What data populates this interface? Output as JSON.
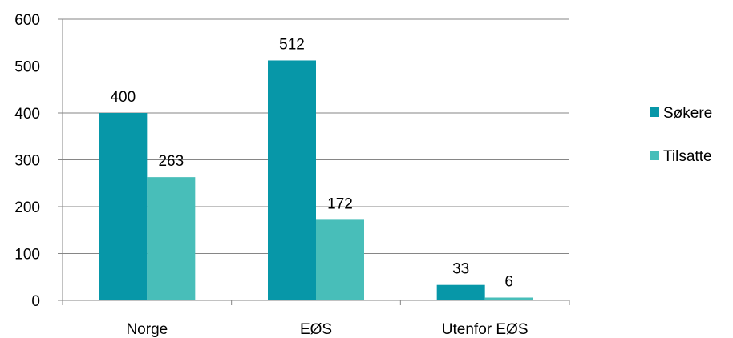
{
  "chart_data": {
    "type": "bar",
    "categories": [
      "Norge",
      "EØS",
      "Utenfor EØS"
    ],
    "series": [
      {
        "name": "Søkere",
        "values": [
          400,
          512,
          33
        ],
        "color": "#0797a8"
      },
      {
        "name": "Tilsatte",
        "values": [
          263,
          172,
          6
        ],
        "color": "#48beb9"
      }
    ],
    "ylim": [
      0,
      600
    ],
    "yticks": [
      0,
      100,
      200,
      300,
      400,
      500,
      600
    ],
    "grid": true,
    "legend_position": "right"
  }
}
